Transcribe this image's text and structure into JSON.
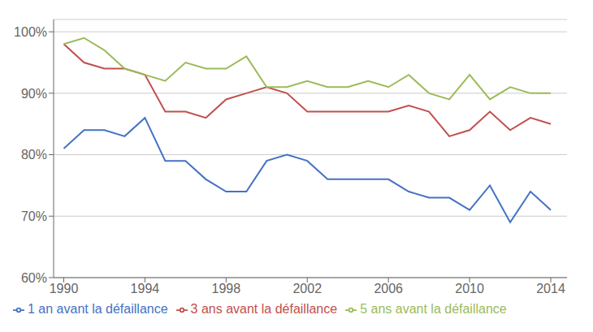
{
  "chart_data": {
    "type": "line",
    "x": [
      1990,
      1991,
      1992,
      1993,
      1994,
      1995,
      1996,
      1997,
      1998,
      1999,
      2000,
      2001,
      2002,
      2003,
      2004,
      2005,
      2006,
      2007,
      2008,
      2009,
      2010,
      2011,
      2012,
      2013,
      2014
    ],
    "series": [
      {
        "name": "1 an avant la défaillance",
        "color": "#4472C4",
        "values": [
          81,
          84,
          84,
          83,
          86,
          79,
          79,
          76,
          74,
          74,
          79,
          80,
          79,
          76,
          76,
          76,
          76,
          74,
          73,
          73,
          71,
          75,
          69,
          74,
          71
        ]
      },
      {
        "name": "3 ans avant la défaillance",
        "color": "#C0504D",
        "values": [
          98,
          95,
          94,
          94,
          93,
          87,
          87,
          86,
          89,
          90,
          91,
          90,
          87,
          87,
          87,
          87,
          87,
          88,
          87,
          83,
          84,
          87,
          84,
          86,
          85
        ]
      },
      {
        "name": "5 ans avant la défaillance",
        "color": "#9BBB59",
        "values": [
          98,
          99,
          97,
          94,
          93,
          92,
          95,
          94,
          94,
          96,
          91,
          91,
          92,
          91,
          91,
          92,
          91,
          93,
          90,
          89,
          93,
          89,
          91,
          90,
          90
        ]
      }
    ],
    "xlim": [
      1989.5,
      2014.8
    ],
    "xticks": [
      1990,
      1994,
      1998,
      2002,
      2006,
      2010,
      2014
    ],
    "ylim": [
      60,
      102
    ],
    "yticks": [
      {
        "value": 60,
        "label": "60%"
      },
      {
        "value": 70,
        "label": "70%"
      },
      {
        "value": 80,
        "label": "80%"
      },
      {
        "value": 90,
        "label": "90%"
      },
      {
        "value": 100,
        "label": "100%"
      }
    ],
    "grid": true,
    "legend": "bottom"
  }
}
